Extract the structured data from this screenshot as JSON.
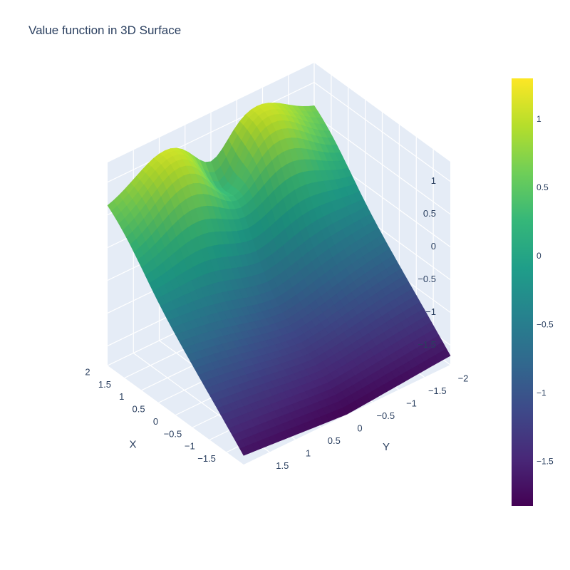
{
  "chart_data": {
    "type": "surface3d",
    "title": "Value function in 3D Surface",
    "xlabel": "X",
    "ylabel": "Y",
    "zlabel": "",
    "x_ticks": [
      "2",
      "1.5",
      "1",
      "0.5",
      "0",
      "−0.5",
      "−1",
      "−1.5"
    ],
    "y_ticks": [
      "−2",
      "−1.5",
      "−1",
      "−0.5",
      "0",
      "0.5",
      "1",
      "1.5"
    ],
    "z_ticks": [
      "1",
      "0.5",
      "0",
      "−0.5",
      "−1",
      "−1.5"
    ],
    "colorbar_ticks": [
      "1",
      "0.5",
      "0",
      "−0.5",
      "−1",
      "−1.5"
    ],
    "colorbar_range": [
      -1.82,
      1.3
    ],
    "x_range": [
      -2,
      2
    ],
    "y_range": [
      -2,
      2
    ],
    "z_range": [
      -1.8,
      1.3
    ],
    "colorscale": "Viridis",
    "colors": [
      "#440154",
      "#482878",
      "#3e4989",
      "#31688e",
      "#26828e",
      "#1f9e89",
      "#35b779",
      "#6ece58",
      "#b5de2b",
      "#fde725"
    ],
    "grid": true,
    "background": "#e5ecf6"
  }
}
